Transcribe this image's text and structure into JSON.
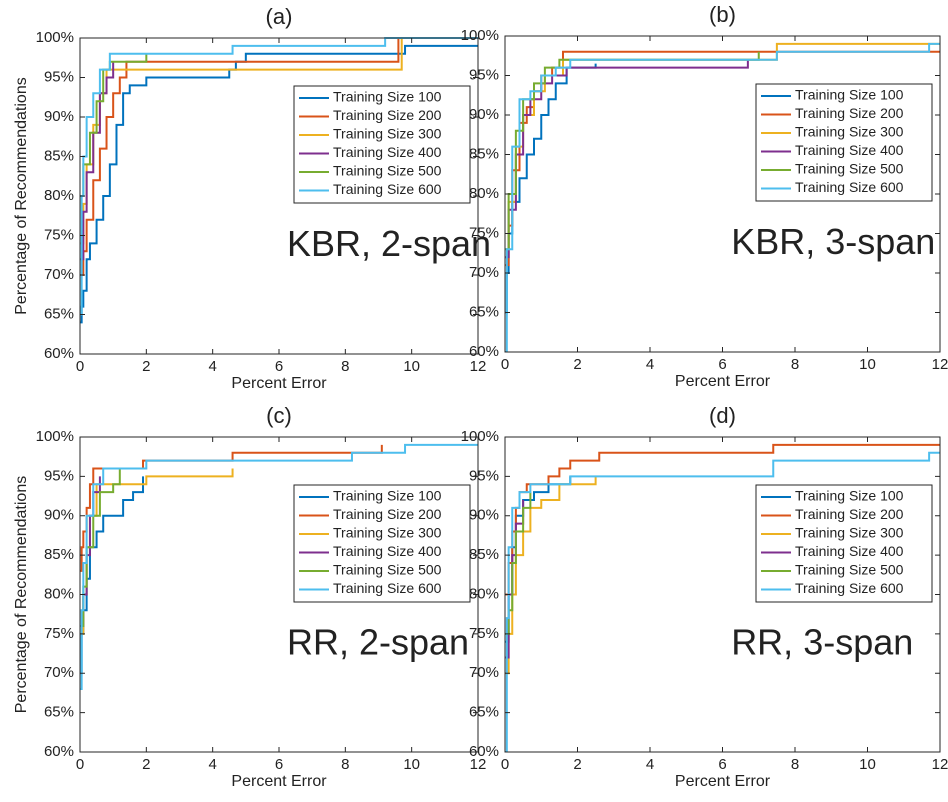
{
  "chart_data": [
    {
      "type": "line",
      "title": "(a)",
      "annotation": "KBR, 2-span",
      "xlabel": "Percent Error",
      "ylabel": "Percentage of Recommendations",
      "xlim": [
        0,
        12
      ],
      "ylim": [
        60,
        100
      ],
      "xticks": [
        0,
        2,
        4,
        6,
        8,
        10,
        12
      ],
      "yticks": [
        {
          "value": 60,
          "label": "60%"
        },
        {
          "value": 65,
          "label": "65%"
        },
        {
          "value": 70,
          "label": "70%"
        },
        {
          "value": 75,
          "label": "75%"
        },
        {
          "value": 80,
          "label": "80%"
        },
        {
          "value": 85,
          "label": "85%"
        },
        {
          "value": 90,
          "label": "90%"
        },
        {
          "value": 95,
          "label": "95%"
        },
        {
          "value": 100,
          "label": "100%"
        }
      ],
      "grid": false,
      "legend": "upper right",
      "step": true,
      "series": [
        {
          "name": "Training Size 100",
          "color": "#0072BD",
          "x": [
            0,
            0.05,
            0.1,
            0.2,
            0.3,
            0.5,
            0.7,
            0.9,
            1.1,
            1.3,
            1.5,
            2.0,
            4.5,
            4.7,
            5.0,
            9.8,
            12
          ],
          "values": [
            64,
            66,
            68,
            72,
            74,
            77,
            80,
            84,
            89,
            93,
            94,
            95,
            96,
            97,
            98,
            99,
            99
          ]
        },
        {
          "name": "Training Size 200",
          "color": "#D95319",
          "x": [
            0,
            0.1,
            0.2,
            0.4,
            0.6,
            0.8,
            1.0,
            1.2,
            1.4,
            9.6,
            12
          ],
          "values": [
            70,
            73,
            77,
            82,
            86,
            90,
            93,
            95,
            97,
            100,
            100
          ]
        },
        {
          "name": "Training Size 300",
          "color": "#EDB120",
          "x": [
            0,
            0.1,
            0.2,
            0.4,
            0.6,
            0.8,
            9.7,
            12
          ],
          "values": [
            74,
            79,
            84,
            89,
            93,
            96,
            100,
            100
          ]
        },
        {
          "name": "Training Size 400",
          "color": "#7E2F8E",
          "x": [
            0,
            0.1,
            0.2,
            0.4,
            0.6,
            0.8,
            1.0
          ],
          "values": [
            72,
            78,
            83,
            88,
            93,
            95,
            97
          ]
        },
        {
          "name": "Training Size 500",
          "color": "#77AC30",
          "x": [
            0,
            0.1,
            0.3,
            0.5,
            0.7,
            0.9,
            2.0
          ],
          "values": [
            80,
            84,
            88,
            92,
            96,
            97,
            98
          ]
        },
        {
          "name": "Training Size 600",
          "color": "#4DBEEE",
          "x": [
            0,
            0.05,
            0.1,
            0.2,
            0.4,
            0.6,
            0.9,
            4.6,
            9.2,
            12
          ],
          "values": [
            65,
            80,
            85,
            90,
            93,
            96,
            98,
            99,
            100,
            100
          ]
        }
      ]
    },
    {
      "type": "line",
      "title": "(b)",
      "annotation": "KBR, 3-span",
      "xlabel": "Percent Error",
      "xlim": [
        0,
        12
      ],
      "ylim": [
        60,
        100
      ],
      "xticks": [
        0,
        2,
        4,
        6,
        8,
        10,
        12
      ],
      "yticks": [
        {
          "value": 60,
          "label": "60%"
        },
        {
          "value": 65,
          "label": "65%"
        },
        {
          "value": 70,
          "label": "70%"
        },
        {
          "value": 75,
          "label": "75%"
        },
        {
          "value": 80,
          "label": "80%"
        },
        {
          "value": 85,
          "label": "85%"
        },
        {
          "value": 90,
          "label": "90%"
        },
        {
          "value": 95,
          "label": "95%"
        },
        {
          "value": 100,
          "label": "100%"
        }
      ],
      "grid": false,
      "legend": "upper right",
      "step": true,
      "series": [
        {
          "name": "Training Size 100",
          "color": "#0072BD",
          "x": [
            0,
            0.05,
            0.1,
            0.2,
            0.4,
            0.6,
            0.8,
            1.0,
            1.2,
            1.4,
            1.7,
            2.5
          ],
          "values": [
            65,
            70,
            75,
            79,
            82,
            85,
            87,
            90,
            92,
            94,
            96,
            96.5
          ]
        },
        {
          "name": "Training Size 200",
          "color": "#D95319",
          "x": [
            0,
            0.1,
            0.2,
            0.4,
            0.6,
            0.8,
            1.0,
            1.3,
            1.6,
            12
          ],
          "values": [
            71,
            76,
            83,
            89,
            91,
            93,
            95,
            96,
            98,
            98
          ]
        },
        {
          "name": "Training Size 300",
          "color": "#EDB120",
          "x": [
            0,
            0.1,
            0.3,
            0.5,
            0.8,
            1.1,
            1.6,
            7.5,
            12
          ],
          "values": [
            72,
            79,
            86,
            90,
            93,
            95,
            97,
            99,
            99
          ]
        },
        {
          "name": "Training Size 400",
          "color": "#7E2F8E",
          "x": [
            0,
            0.1,
            0.3,
            0.5,
            0.7,
            1.0,
            1.3,
            1.7,
            6.6,
            6.7
          ],
          "values": [
            72,
            78,
            85,
            90,
            92,
            94,
            95,
            96,
            96,
            97
          ]
        },
        {
          "name": "Training Size 500",
          "color": "#77AC30",
          "x": [
            0,
            0.1,
            0.3,
            0.5,
            0.8,
            1.1,
            1.5,
            7.0
          ],
          "values": [
            73,
            80,
            88,
            92,
            94,
            96,
            97,
            98
          ]
        },
        {
          "name": "Training Size 600",
          "color": "#4DBEEE",
          "x": [
            0,
            0.05,
            0.2,
            0.4,
            0.7,
            1.0,
            1.4,
            1.8,
            7.5,
            11.7,
            12
          ],
          "values": [
            60,
            73,
            86,
            92,
            93,
            95,
            96,
            97,
            98,
            99,
            99
          ]
        }
      ]
    },
    {
      "type": "line",
      "title": "(c)",
      "annotation": "RR, 2-span",
      "xlabel": "Percent Error",
      "ylabel": "Percentage of Recommendations",
      "xlim": [
        0,
        12
      ],
      "ylim": [
        60,
        100
      ],
      "xticks": [
        0,
        2,
        4,
        6,
        8,
        10,
        12
      ],
      "yticks": [
        {
          "value": 60,
          "label": "60%"
        },
        {
          "value": 65,
          "label": "65%"
        },
        {
          "value": 70,
          "label": "70%"
        },
        {
          "value": 75,
          "label": "75%"
        },
        {
          "value": 80,
          "label": "80%"
        },
        {
          "value": 85,
          "label": "85%"
        },
        {
          "value": 90,
          "label": "90%"
        },
        {
          "value": 95,
          "label": "95%"
        },
        {
          "value": 100,
          "label": "100%"
        }
      ],
      "grid": false,
      "legend": "upper right",
      "step": true,
      "series": [
        {
          "name": "Training Size 100",
          "color": "#0072BD",
          "x": [
            0,
            0.05,
            0.1,
            0.2,
            0.3,
            0.5,
            0.7,
            1.3,
            1.6,
            1.9
          ],
          "values": [
            70,
            75,
            78,
            82,
            86,
            88,
            90,
            92,
            93,
            95
          ]
        },
        {
          "name": "Training Size 200",
          "color": "#D95319",
          "x": [
            0,
            0.05,
            0.1,
            0.2,
            0.3,
            0.4,
            1.9,
            4.6,
            9.1
          ],
          "values": [
            83,
            86,
            88,
            91,
            94,
            96,
            97,
            98,
            99
          ]
        },
        {
          "name": "Training Size 300",
          "color": "#EDB120",
          "x": [
            0,
            0.1,
            0.2,
            0.3,
            0.5,
            2.0,
            4.6
          ],
          "values": [
            75,
            80,
            86,
            90,
            94,
            95,
            96
          ]
        },
        {
          "name": "Training Size 400",
          "color": "#7E2F8E",
          "x": [
            0,
            0.1,
            0.2,
            0.3,
            0.4,
            0.6
          ],
          "values": [
            76,
            80,
            85,
            90,
            93,
            95
          ]
        },
        {
          "name": "Training Size 500",
          "color": "#77AC30",
          "x": [
            0,
            0.1,
            0.2,
            0.4,
            0.6,
            1.0,
            1.2
          ],
          "values": [
            76,
            81,
            86,
            90,
            93,
            94,
            96
          ]
        },
        {
          "name": "Training Size 600",
          "color": "#4DBEEE",
          "x": [
            0,
            0.05,
            0.1,
            0.2,
            0.4,
            0.7,
            2.0,
            8.2,
            9.8,
            12
          ],
          "values": [
            68,
            78,
            84,
            90,
            94,
            96,
            97,
            98,
            99,
            99
          ]
        }
      ]
    },
    {
      "type": "line",
      "title": "(d)",
      "annotation": "RR, 3-span",
      "xlabel": "Percent Error",
      "xlim": [
        0,
        12
      ],
      "ylim": [
        60,
        100
      ],
      "xticks": [
        0,
        2,
        4,
        6,
        8,
        10,
        12
      ],
      "yticks": [
        {
          "value": 60,
          "label": "60%"
        },
        {
          "value": 65,
          "label": "65%"
        },
        {
          "value": 70,
          "label": "70%"
        },
        {
          "value": 75,
          "label": "75%"
        },
        {
          "value": 80,
          "label": "80%"
        },
        {
          "value": 85,
          "label": "85%"
        },
        {
          "value": 90,
          "label": "90%"
        },
        {
          "value": 95,
          "label": "95%"
        },
        {
          "value": 100,
          "label": "100%"
        }
      ],
      "grid": false,
      "legend": "upper right",
      "step": true,
      "series": [
        {
          "name": "Training Size 100",
          "color": "#0072BD",
          "x": [
            0,
            0.1,
            0.2,
            0.3,
            0.5,
            0.8,
            1.2,
            1.8
          ],
          "values": [
            74,
            80,
            86,
            90,
            92,
            93,
            94,
            95
          ]
        },
        {
          "name": "Training Size 200",
          "color": "#D95319",
          "x": [
            0,
            0.1,
            0.2,
            0.3,
            0.4,
            0.6,
            1.2,
            1.5,
            1.8,
            2.6,
            7.4,
            12
          ],
          "values": [
            80,
            84,
            88,
            91,
            93,
            94,
            95,
            96,
            97,
            98,
            99,
            99
          ]
        },
        {
          "name": "Training Size 300",
          "color": "#EDB120",
          "x": [
            0,
            0.1,
            0.2,
            0.3,
            0.5,
            0.7,
            1.0,
            1.5,
            2.5
          ],
          "values": [
            70,
            75,
            80,
            85,
            88,
            91,
            92,
            94,
            95
          ]
        },
        {
          "name": "Training Size 400",
          "color": "#7E2F8E",
          "x": [
            0,
            0.1,
            0.2,
            0.3,
            0.5
          ],
          "values": [
            72,
            80,
            85,
            89,
            92
          ]
        },
        {
          "name": "Training Size 500",
          "color": "#77AC30",
          "x": [
            0,
            0.1,
            0.2,
            0.3,
            0.5,
            0.7
          ],
          "values": [
            75,
            78,
            84,
            88,
            91,
            93
          ]
        },
        {
          "name": "Training Size 600",
          "color": "#4DBEEE",
          "x": [
            0,
            0.05,
            0.1,
            0.2,
            0.4,
            0.7,
            1.8,
            7.4,
            11.7,
            12
          ],
          "values": [
            60,
            77,
            86,
            91,
            93,
            94,
            95,
            97,
            98,
            98
          ]
        }
      ]
    }
  ]
}
